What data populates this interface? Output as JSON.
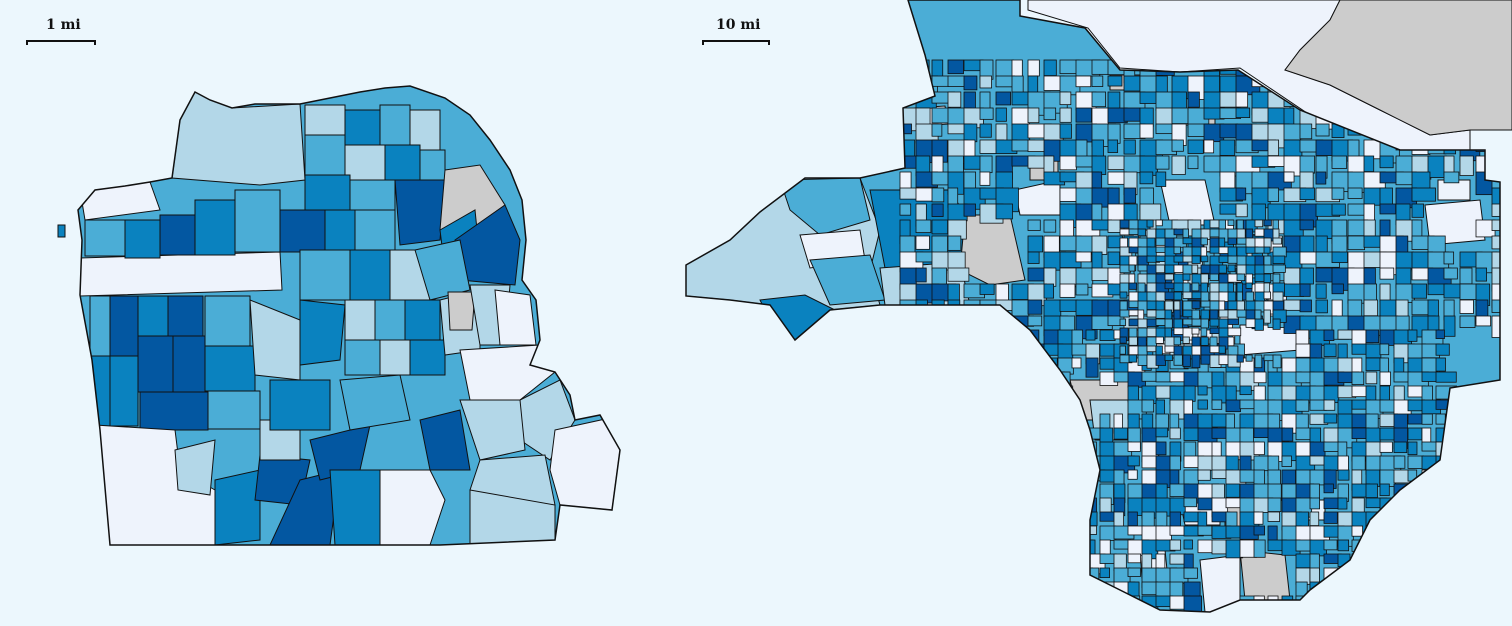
{
  "maps": [
    {
      "name": "sf",
      "scale_label": "1 mi"
    },
    {
      "name": "la",
      "scale_label": "10 mi"
    }
  ],
  "palette": {
    "background": "#ecf7fd",
    "no_data": "#cccccc",
    "class_1": "#eef3fc",
    "class_2": "#b3d7e8",
    "class_3": "#4badd6",
    "class_4": "#0a82bf",
    "class_5": "#0357a1",
    "outline": "#111111",
    "outside_land": "#eef3fc"
  }
}
